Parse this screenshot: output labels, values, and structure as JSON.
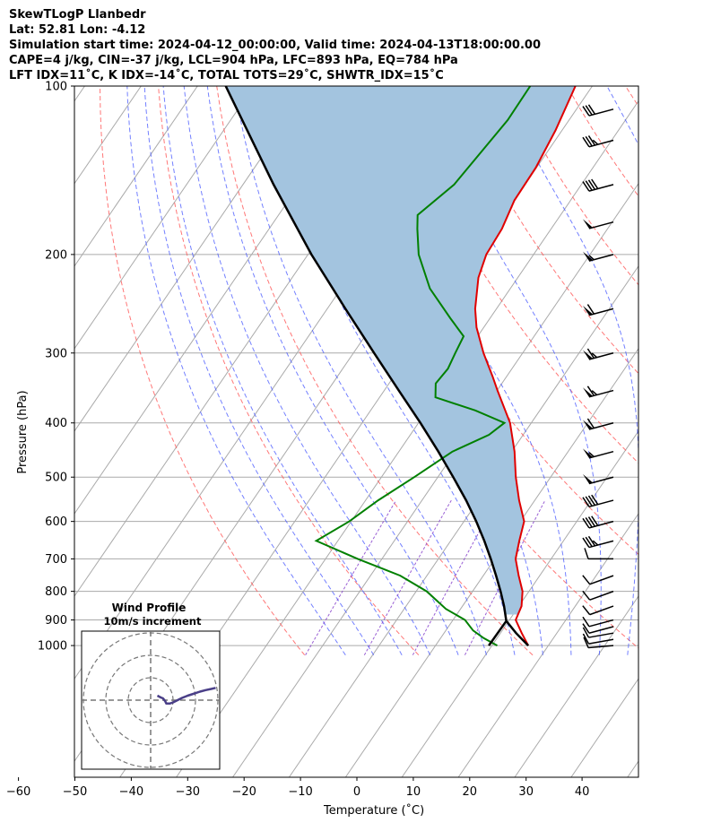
{
  "header": {
    "lines": [
      "SkewTLogP Llanbedr",
      "Lat: 52.81   Lon: -4.12",
      "Simulation start time: 2024-04-12_00:00:00, Valid time: 2024-04-13T18:00:00.00",
      "CAPE=4 j/kg, CIN=-37 j/kg, LCL=904 hPa, LFC=893 hPa, EQ=784 hPa",
      "LFT IDX=11˚C, K IDX=-14˚C, TOTAL TOTS=29˚C, SHWTR_IDX=15˚C"
    ]
  },
  "chart_data": {
    "type": "skewt",
    "xlabel": "Temperature (˚C)",
    "ylabel": "Pressure (hPa)",
    "xlim": [
      -60,
      40
    ],
    "ylim": [
      1040,
      100
    ],
    "x_ticks": [
      -60,
      -50,
      -40,
      -30,
      -20,
      -10,
      0,
      10,
      20,
      30,
      40
    ],
    "y_ticks": [
      100,
      200,
      300,
      400,
      500,
      600,
      700,
      800,
      900,
      1000
    ],
    "colors": {
      "temperature": "#e00000",
      "dewpoint": "#008000",
      "parcel": "#000000",
      "cape_fill": "#a3c4df",
      "dry_adiabat": "#ff5555",
      "moist_adiabat": "#4455ff",
      "mixing_ratio": "#8844cc",
      "isotherm": "#aaaaaa",
      "hodograph": "#4a3f88"
    },
    "temperature": [
      {
        "p": 1000,
        "t": 11.0
      },
      {
        "p": 950,
        "t": 8.0
      },
      {
        "p": 900,
        "t": 5.0
      },
      {
        "p": 850,
        "t": 4.0
      },
      {
        "p": 800,
        "t": 2.0
      },
      {
        "p": 750,
        "t": -1.0
      },
      {
        "p": 700,
        "t": -4.0
      },
      {
        "p": 650,
        "t": -6.0
      },
      {
        "p": 600,
        "t": -8.0
      },
      {
        "p": 550,
        "t": -12.0
      },
      {
        "p": 500,
        "t": -16.0
      },
      {
        "p": 450,
        "t": -20.0
      },
      {
        "p": 400,
        "t": -25.0
      },
      {
        "p": 350,
        "t": -32.0
      },
      {
        "p": 330,
        "t": -35.0
      },
      {
        "p": 300,
        "t": -40.0
      },
      {
        "p": 270,
        "t": -45.0
      },
      {
        "p": 250,
        "t": -48.0
      },
      {
        "p": 220,
        "t": -52.0
      },
      {
        "p": 200,
        "t": -54.0
      },
      {
        "p": 180,
        "t": -55.0
      },
      {
        "p": 160,
        "t": -57.0
      },
      {
        "p": 140,
        "t": -58.0
      },
      {
        "p": 120,
        "t": -60.0
      },
      {
        "p": 100,
        "t": -63.0
      }
    ],
    "dewpoint": [
      {
        "p": 1000,
        "t": 5.5
      },
      {
        "p": 970,
        "t": 2.0
      },
      {
        "p": 940,
        "t": -1.0
      },
      {
        "p": 900,
        "t": -4.0
      },
      {
        "p": 860,
        "t": -9.0
      },
      {
        "p": 800,
        "t": -15.0
      },
      {
        "p": 750,
        "t": -22.0
      },
      {
        "p": 700,
        "t": -32.0
      },
      {
        "p": 650,
        "t": -42.0
      },
      {
        "p": 600,
        "t": -39.0
      },
      {
        "p": 550,
        "t": -37.0
      },
      {
        "p": 500,
        "t": -34.0
      },
      {
        "p": 450,
        "t": -31.0
      },
      {
        "p": 420,
        "t": -27.0
      },
      {
        "p": 400,
        "t": -26.0
      },
      {
        "p": 380,
        "t": -33.0
      },
      {
        "p": 360,
        "t": -42.0
      },
      {
        "p": 340,
        "t": -44.0
      },
      {
        "p": 320,
        "t": -44.0
      },
      {
        "p": 300,
        "t": -45.0
      },
      {
        "p": 280,
        "t": -46.0
      },
      {
        "p": 260,
        "t": -51.0
      },
      {
        "p": 230,
        "t": -59.0
      },
      {
        "p": 200,
        "t": -66.0
      },
      {
        "p": 180,
        "t": -70.0
      },
      {
        "p": 170,
        "t": -72.0
      },
      {
        "p": 150,
        "t": -70.0
      },
      {
        "p": 130,
        "t": -70.0
      },
      {
        "p": 115,
        "t": -70.0
      },
      {
        "p": 100,
        "t": -71.0
      }
    ],
    "parcel": [
      {
        "p": 1000,
        "t": 11.0
      },
      {
        "p": 950,
        "t": 7.0
      },
      {
        "p": 904,
        "t": 3.5
      },
      {
        "p": 850,
        "t": 0.9
      },
      {
        "p": 800,
        "t": -1.9
      },
      {
        "p": 750,
        "t": -5.0
      },
      {
        "p": 700,
        "t": -8.4
      },
      {
        "p": 650,
        "t": -12.2
      },
      {
        "p": 600,
        "t": -16.5
      },
      {
        "p": 550,
        "t": -21.4
      },
      {
        "p": 500,
        "t": -27.1
      },
      {
        "p": 450,
        "t": -33.5
      },
      {
        "p": 400,
        "t": -40.9
      },
      {
        "p": 350,
        "t": -49.5
      },
      {
        "p": 300,
        "t": -59.4
      },
      {
        "p": 250,
        "t": -71.0
      },
      {
        "p": 200,
        "t": -85.0
      },
      {
        "p": 150,
        "t": -102.0
      },
      {
        "p": 100,
        "t": -125.0
      }
    ],
    "parcel_surface_dewpoint": {
      "p": 1000,
      "t": 4.0
    },
    "wind_barbs": [
      {
        "p": 1000,
        "speed_kt": 10,
        "dir_deg": 265
      },
      {
        "p": 975,
        "speed_kt": 10,
        "dir_deg": 260
      },
      {
        "p": 950,
        "speed_kt": 10,
        "dir_deg": 260
      },
      {
        "p": 925,
        "speed_kt": 10,
        "dir_deg": 255
      },
      {
        "p": 900,
        "speed_kt": 10,
        "dir_deg": 255
      },
      {
        "p": 850,
        "speed_kt": 10,
        "dir_deg": 250
      },
      {
        "p": 800,
        "speed_kt": 10,
        "dir_deg": 250
      },
      {
        "p": 750,
        "speed_kt": 10,
        "dir_deg": 250
      },
      {
        "p": 700,
        "speed_kt": 10,
        "dir_deg": 270
      },
      {
        "p": 650,
        "speed_kt": 35,
        "dir_deg": 255
      },
      {
        "p": 600,
        "speed_kt": 40,
        "dir_deg": 255
      },
      {
        "p": 550,
        "speed_kt": 40,
        "dir_deg": 255
      },
      {
        "p": 500,
        "speed_kt": 50,
        "dir_deg": 255
      },
      {
        "p": 450,
        "speed_kt": 55,
        "dir_deg": 255
      },
      {
        "p": 400,
        "speed_kt": 60,
        "dir_deg": 255
      },
      {
        "p": 350,
        "speed_kt": 65,
        "dir_deg": 255
      },
      {
        "p": 300,
        "speed_kt": 65,
        "dir_deg": 255
      },
      {
        "p": 250,
        "speed_kt": 60,
        "dir_deg": 255
      },
      {
        "p": 200,
        "speed_kt": 55,
        "dir_deg": 255
      },
      {
        "p": 175,
        "speed_kt": 50,
        "dir_deg": 255
      },
      {
        "p": 150,
        "speed_kt": 40,
        "dir_deg": 255
      },
      {
        "p": 125,
        "speed_kt": 35,
        "dir_deg": 255
      },
      {
        "p": 110,
        "speed_kt": 30,
        "dir_deg": 255
      }
    ],
    "hodograph": {
      "title": "Wind Profile",
      "subtitle": "10m/s increment",
      "ring_increment_ms": 10,
      "rings": 3,
      "points_ms": [
        [
          3.0,
          2.0
        ],
        [
          4.5,
          1.2
        ],
        [
          5.5,
          0.8
        ],
        [
          6.5,
          -0.5
        ],
        [
          7.0,
          -1.5
        ],
        [
          8.5,
          -1.5
        ],
        [
          10.0,
          -1.0
        ],
        [
          12.0,
          0.0
        ],
        [
          14.0,
          1.0
        ],
        [
          16.5,
          2.0
        ],
        [
          19.0,
          2.8
        ],
        [
          22.0,
          3.8
        ],
        [
          24.5,
          4.5
        ],
        [
          27.0,
          5.0
        ],
        [
          29.0,
          5.5
        ]
      ]
    }
  }
}
